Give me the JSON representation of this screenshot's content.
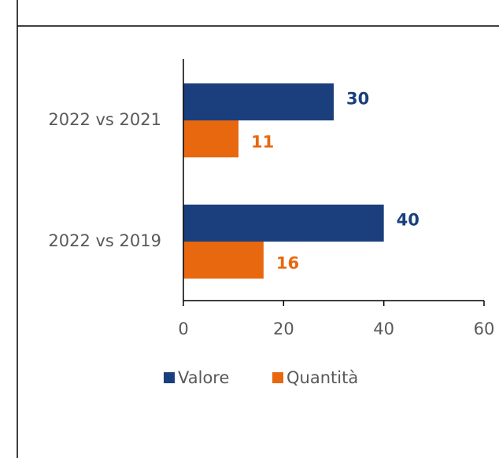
{
  "chart_data": {
    "type": "barh",
    "categories": [
      "2022 vs 2021",
      "2022 vs 2019"
    ],
    "series": [
      {
        "name": "Valore",
        "color": "#1a3f7c",
        "values": [
          30,
          40
        ]
      },
      {
        "name": "Quantità",
        "color": "#e8680f",
        "values": [
          11,
          16
        ]
      }
    ],
    "xlim": [
      0,
      60
    ],
    "xticks": [
      0,
      20,
      40,
      60
    ],
    "legend": "bottom"
  }
}
